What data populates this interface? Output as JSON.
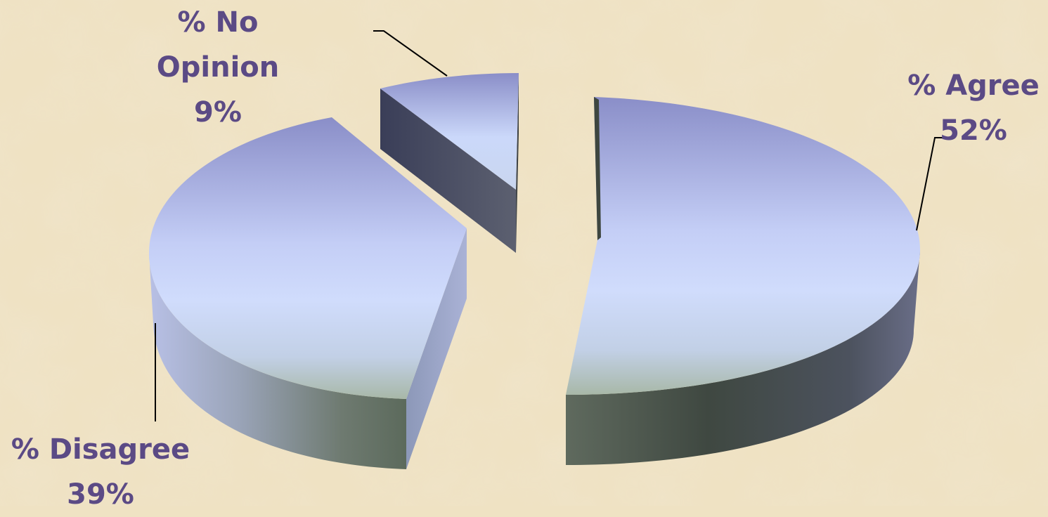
{
  "chart_data": {
    "type": "pie",
    "style": "3d-exploded",
    "title": "",
    "slices": [
      {
        "name": "% Agree",
        "pct_label": "52%",
        "value": 52
      },
      {
        "name": "% Disagree",
        "pct_label": "39%",
        "value": 39
      },
      {
        "name": "% No Opinion",
        "pct_label": "9%",
        "value": 9
      }
    ],
    "colors": {
      "top_light": "#d0dcfc",
      "top_dark": "#8a8ec8",
      "side_light": "#b8c0e8",
      "side_dark": "#3e4640",
      "label": "#5b4a85",
      "background": "#efe2c3"
    },
    "legend": "none"
  },
  "labels": {
    "agree_name": "% Agree",
    "agree_pct": "52%",
    "disagree_name": "% Disagree",
    "disagree_pct": "39%",
    "noopinion_line1": "% No",
    "noopinion_line2": "Opinion",
    "noopinion_pct": "9%"
  }
}
